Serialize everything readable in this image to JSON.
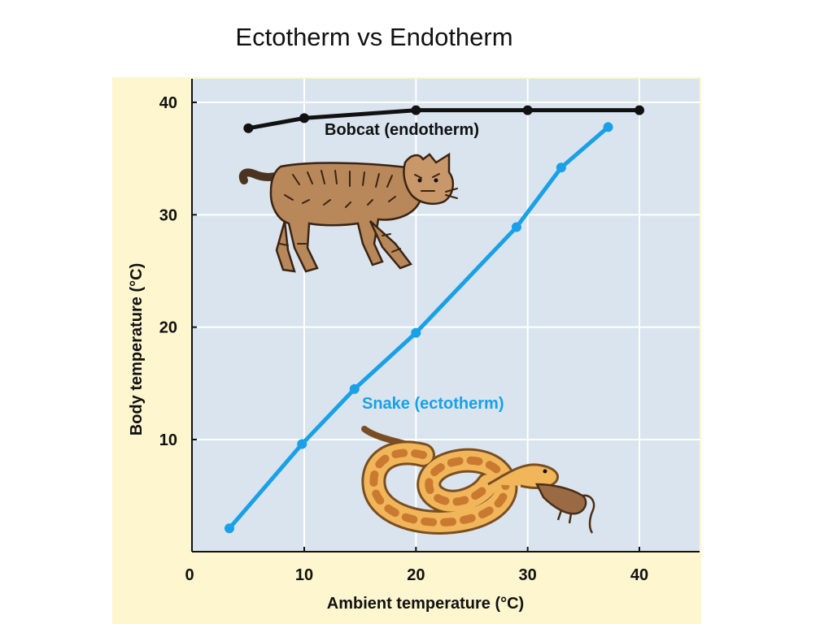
{
  "slide": {
    "title": "Ectotherm vs Endotherm"
  },
  "colors": {
    "figure_background": "#fdf6cf",
    "plot_background": "#d9e4ee",
    "gridline": "#ffffff",
    "axis": "#111111",
    "bobcat": "#111111",
    "snake": "#1aa0e6"
  },
  "illustrations": {
    "bobcat": "bobcat-illustration",
    "snake": "snake-eating-mouse-illustration"
  },
  "chart_data": {
    "type": "line",
    "xlabel": "Ambient temperature (°C)",
    "ylabel": "Body temperature (°C)",
    "xlim": [
      0,
      45
    ],
    "ylim": [
      0,
      42
    ],
    "xticks": [
      0,
      10,
      20,
      30,
      40
    ],
    "yticks": [
      10,
      20,
      30,
      40
    ],
    "grid": true,
    "series": [
      {
        "name": "Bobcat (endotherm)",
        "x": [
          5,
          10,
          20,
          30,
          40
        ],
        "y": [
          37.7,
          38.6,
          39.3,
          39.3,
          39.3
        ]
      },
      {
        "name": "Snake (ectotherm)",
        "x": [
          3.3,
          9.8,
          14.5,
          20,
          29,
          33,
          37.2
        ],
        "y": [
          2.1,
          9.6,
          14.5,
          19.5,
          28.9,
          34.2,
          37.8
        ]
      }
    ]
  }
}
